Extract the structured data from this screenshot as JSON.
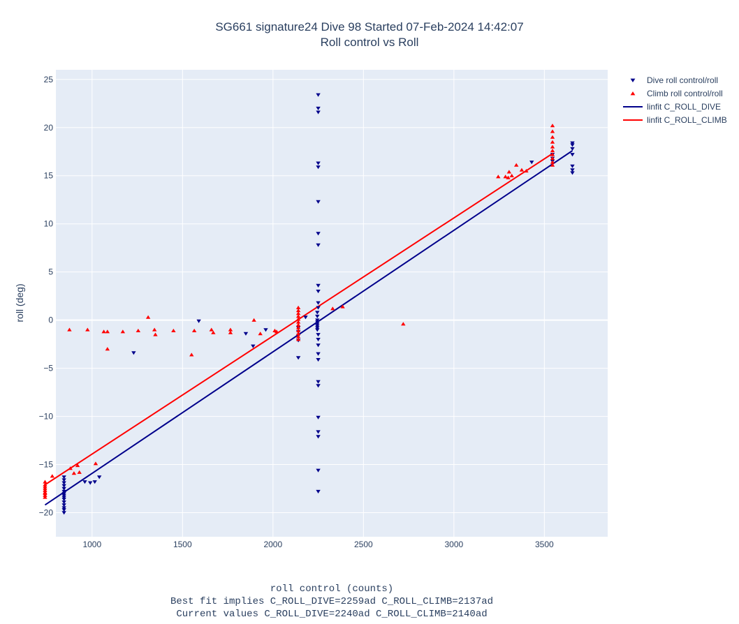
{
  "chart_data": {
    "type": "scatter",
    "title": "SG661 signature24 Dive 98 Started 07-Feb-2024 14:42:07",
    "subtitle": "Roll control vs Roll",
    "xlabel": "roll control (counts)",
    "xlabel_lines": [
      "Best fit implies C_ROLL_DIVE=2259ad C_ROLL_CLIMB=2137ad",
      "Current values C_ROLL_DIVE=2240ad C_ROLL_CLIMB=2140ad"
    ],
    "ylabel": "roll (deg)",
    "xlim": [
      800,
      3850
    ],
    "ylim": [
      -22.5,
      26
    ],
    "xticks": [
      1000,
      1500,
      2000,
      2500,
      3000,
      3500
    ],
    "yticks": [
      -20,
      -15,
      -10,
      -5,
      0,
      5,
      10,
      15,
      20,
      25
    ],
    "grid": true,
    "legend_position": "top-right",
    "colors": {
      "dive": "#00008b",
      "climb": "#ff0000",
      "plot_bg": "#e5ecf6",
      "grid": "#ffffff"
    },
    "series": [
      {
        "name": "Dive roll control/roll",
        "marker": "triangle-down",
        "color": "#00008b",
        "points": [
          [
            845,
            -16.3
          ],
          [
            845,
            -16.6
          ],
          [
            845,
            -16.9
          ],
          [
            845,
            -17.2
          ],
          [
            845,
            -17.5
          ],
          [
            845,
            -17.8
          ],
          [
            845,
            -18.0
          ],
          [
            845,
            -18.2
          ],
          [
            845,
            -18.4
          ],
          [
            845,
            -18.6
          ],
          [
            845,
            -18.9
          ],
          [
            845,
            -19.2
          ],
          [
            845,
            -19.5
          ],
          [
            845,
            -19.7
          ],
          [
            845,
            -20.0
          ],
          [
            960,
            -16.8
          ],
          [
            990,
            -16.9
          ],
          [
            1015,
            -16.8
          ],
          [
            1040,
            -16.3
          ],
          [
            1230,
            -3.4
          ],
          [
            1590,
            -0.1
          ],
          [
            1850,
            -1.4
          ],
          [
            1890,
            -2.7
          ],
          [
            1960,
            -1.0
          ],
          [
            2140,
            -3.9
          ],
          [
            2140,
            -2.1
          ],
          [
            2140,
            -1.6
          ],
          [
            2140,
            -1.2
          ],
          [
            2140,
            -0.8
          ],
          [
            2180,
            0.3
          ],
          [
            2245,
            -1.0
          ],
          [
            2245,
            -0.8
          ],
          [
            2245,
            -0.6
          ],
          [
            2245,
            -0.4
          ],
          [
            2245,
            -0.2
          ],
          [
            2245,
            0.0
          ],
          [
            2245,
            0.4
          ],
          [
            2245,
            0.8
          ],
          [
            2250,
            23.4
          ],
          [
            2250,
            22.0
          ],
          [
            2250,
            21.6
          ],
          [
            2250,
            16.3
          ],
          [
            2250,
            15.9
          ],
          [
            2250,
            12.3
          ],
          [
            2250,
            9.0
          ],
          [
            2250,
            7.8
          ],
          [
            2250,
            3.6
          ],
          [
            2250,
            3.0
          ],
          [
            2250,
            1.8
          ],
          [
            2250,
            1.3
          ],
          [
            2250,
            -1.5
          ],
          [
            2250,
            -2.0
          ],
          [
            2250,
            -2.6
          ],
          [
            2250,
            -3.5
          ],
          [
            2250,
            -4.1
          ],
          [
            2250,
            -6.4
          ],
          [
            2250,
            -6.8
          ],
          [
            2250,
            -10.1
          ],
          [
            2250,
            -11.6
          ],
          [
            2250,
            -12.1
          ],
          [
            2250,
            -15.6
          ],
          [
            2250,
            -17.8
          ],
          [
            3430,
            16.4
          ],
          [
            3545,
            16.5
          ],
          [
            3545,
            16.8
          ],
          [
            3545,
            17.2
          ],
          [
            3655,
            18.4
          ],
          [
            3655,
            18.2
          ],
          [
            3655,
            17.8
          ],
          [
            3655,
            17.2
          ],
          [
            3655,
            16.0
          ],
          [
            3655,
            15.6
          ],
          [
            3655,
            15.3
          ]
        ]
      },
      {
        "name": "Climb roll control/roll",
        "marker": "triangle-up",
        "color": "#ff0000",
        "points": [
          [
            740,
            -16.8
          ],
          [
            740,
            -17.1
          ],
          [
            740,
            -17.3
          ],
          [
            740,
            -17.5
          ],
          [
            740,
            -17.7
          ],
          [
            740,
            -17.9
          ],
          [
            740,
            -18.0
          ],
          [
            740,
            -18.2
          ],
          [
            740,
            -18.4
          ],
          [
            780,
            -16.2
          ],
          [
            875,
            -1.0
          ],
          [
            880,
            -15.4
          ],
          [
            900,
            -15.9
          ],
          [
            920,
            -15.1
          ],
          [
            930,
            -15.8
          ],
          [
            975,
            -1.0
          ],
          [
            1020,
            -14.9
          ],
          [
            1065,
            -1.2
          ],
          [
            1085,
            -1.2
          ],
          [
            1085,
            -3.0
          ],
          [
            1170,
            -1.2
          ],
          [
            1255,
            -1.1
          ],
          [
            1310,
            0.3
          ],
          [
            1345,
            -1.0
          ],
          [
            1350,
            -1.5
          ],
          [
            1450,
            -1.1
          ],
          [
            1550,
            -3.6
          ],
          [
            1565,
            -1.1
          ],
          [
            1660,
            -1.0
          ],
          [
            1670,
            -1.3
          ],
          [
            1765,
            -1.0
          ],
          [
            1765,
            -1.3
          ],
          [
            1895,
            0.0
          ],
          [
            1930,
            -1.4
          ],
          [
            2010,
            -1.1
          ],
          [
            2020,
            -1.2
          ],
          [
            2140,
            1.3
          ],
          [
            2140,
            1.0
          ],
          [
            2140,
            0.7
          ],
          [
            2140,
            0.4
          ],
          [
            2140,
            0.1
          ],
          [
            2140,
            -0.2
          ],
          [
            2140,
            -0.5
          ],
          [
            2140,
            -0.8
          ],
          [
            2140,
            -1.1
          ],
          [
            2140,
            -1.4
          ],
          [
            2140,
            -1.7
          ],
          [
            2140,
            -2.0
          ],
          [
            2330,
            1.2
          ],
          [
            2385,
            1.4
          ],
          [
            2720,
            -0.4
          ],
          [
            3245,
            14.9
          ],
          [
            3285,
            14.9
          ],
          [
            3300,
            14.8
          ],
          [
            3305,
            15.4
          ],
          [
            3320,
            15.0
          ],
          [
            3345,
            16.1
          ],
          [
            3375,
            15.6
          ],
          [
            3400,
            15.5
          ],
          [
            3545,
            20.2
          ],
          [
            3545,
            19.6
          ],
          [
            3545,
            19.0
          ],
          [
            3545,
            18.5
          ],
          [
            3545,
            18.0
          ],
          [
            3545,
            17.6
          ],
          [
            3545,
            17.2
          ],
          [
            3545,
            16.8
          ],
          [
            3545,
            16.4
          ],
          [
            3545,
            16.1
          ]
        ]
      },
      {
        "name": "linfit C_ROLL_DIVE",
        "type": "line",
        "color": "#00008b",
        "x": [
          740,
          3655
        ],
        "y": [
          -19.2,
          17.6
        ]
      },
      {
        "name": "linfit C_ROLL_CLIMB",
        "type": "line",
        "color": "#ff0000",
        "x": [
          740,
          3545
        ],
        "y": [
          -17.1,
          17.3
        ]
      }
    ]
  }
}
